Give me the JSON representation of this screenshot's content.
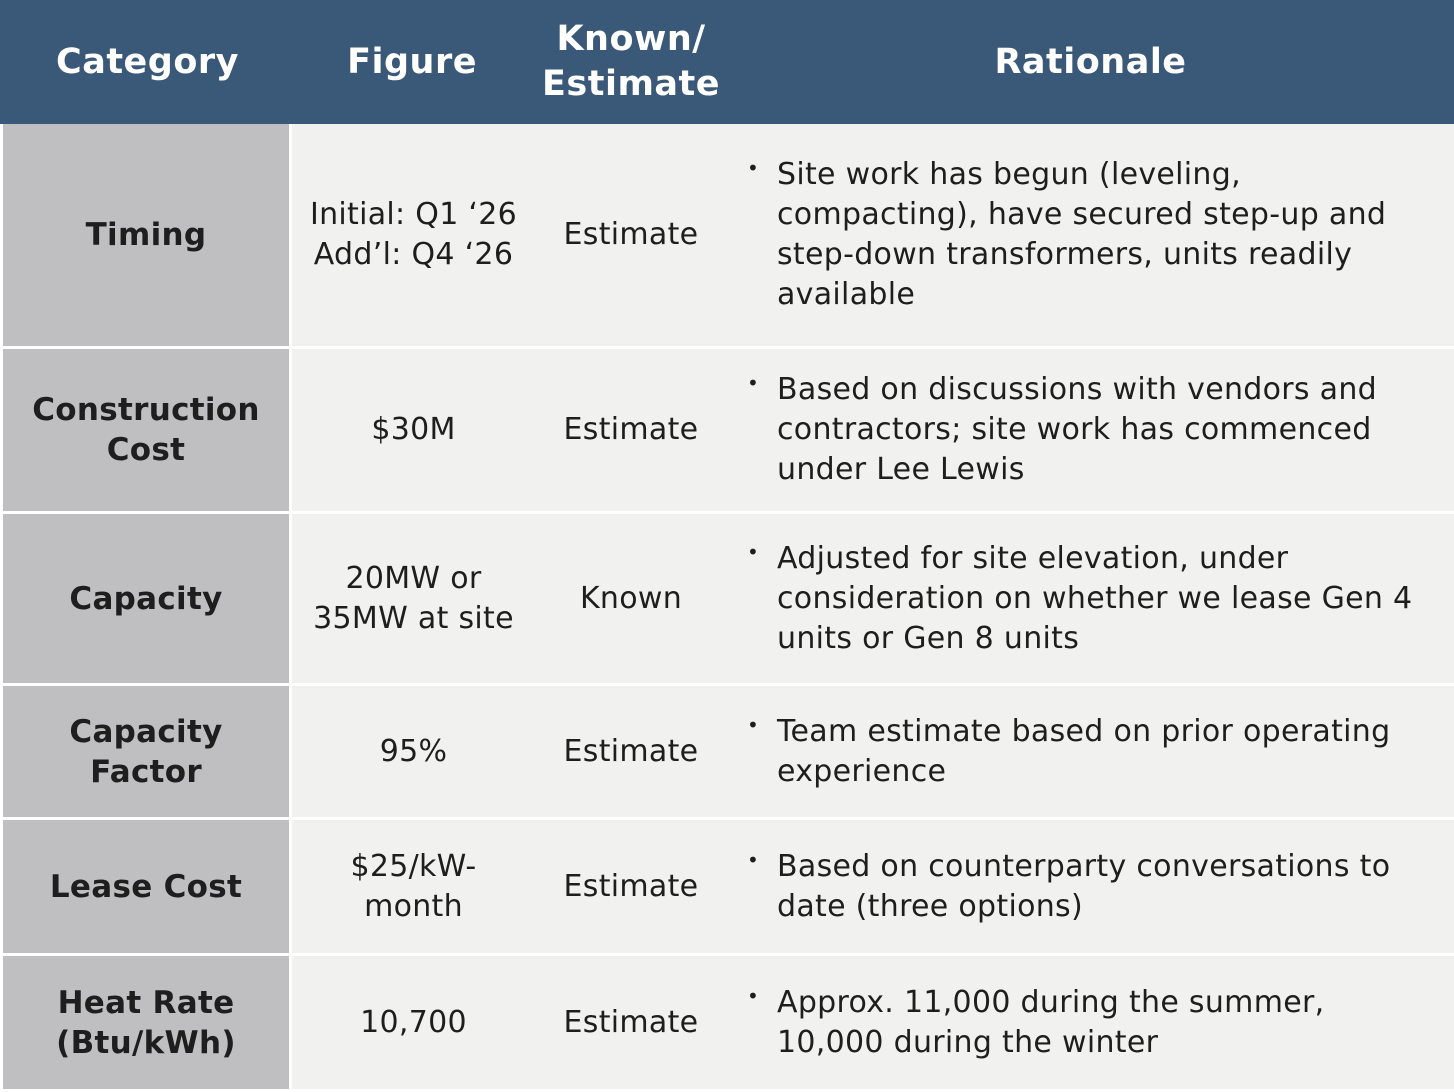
{
  "header": {
    "category": "Category",
    "figure": "Figure",
    "known_estimate": "Known/\nEstimate",
    "rationale": "Rationale"
  },
  "rows": [
    {
      "category": "Timing",
      "figure": "Initial: Q1 ‘26\nAdd’l: Q4 ‘26",
      "status": "Estimate",
      "rationale": "Site work has begun (leveling, compacting), have secured step-up and step-down transformers, units readily available"
    },
    {
      "category": "Construction\nCost",
      "figure": "$30M",
      "status": "Estimate",
      "rationale": "Based on discussions with vendors and contractors; site work has commenced under Lee Lewis"
    },
    {
      "category": "Capacity",
      "figure": "20MW or\n35MW at site",
      "status": "Known",
      "rationale": "Adjusted for site elevation, under consideration on whether we lease Gen 4 units or Gen 8 units"
    },
    {
      "category": "Capacity\nFactor",
      "figure": "95%",
      "status": "Estimate",
      "rationale": "Team estimate based on prior operating experience"
    },
    {
      "category": "Lease Cost",
      "figure": "$25/kW-\nmonth",
      "status": "Estimate",
      "rationale": "Based on counterparty conversations to date (three options)"
    },
    {
      "category": "Heat Rate\n(Btu/kWh)",
      "figure": "10,700",
      "status": "Estimate",
      "rationale": "Approx. 11,000 during the summer, 10,000 during the winter"
    }
  ],
  "bullet_glyph": "•",
  "colors": {
    "header_bg": "#3a5877",
    "header_text": "#ffffff",
    "category_bg": "#bfbfc1",
    "cell_bg": "#f1f2f0",
    "text": "#1e1e1e"
  }
}
